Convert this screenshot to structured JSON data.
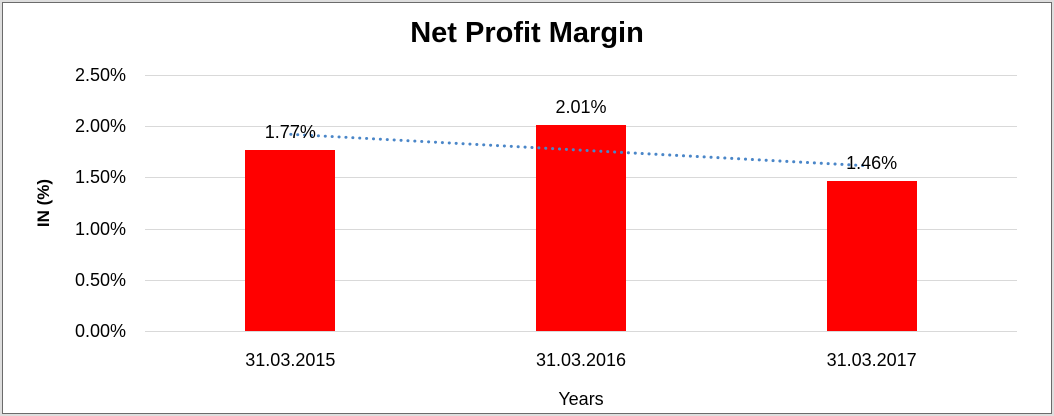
{
  "chart_data": {
    "type": "bar",
    "title": "Net Profit Margin",
    "categories": [
      "31.03.2015",
      "31.03.2016",
      "31.03.2017"
    ],
    "values": [
      1.77,
      2.01,
      1.46
    ],
    "value_labels": [
      "1.77%",
      "2.01%",
      "1.46%"
    ],
    "xlabel": "Years",
    "ylabel": "IN (%)",
    "ylim": [
      0,
      2.5
    ],
    "ytick_step": 0.5,
    "ytick_labels": [
      "0.00%",
      "0.50%",
      "1.00%",
      "1.50%",
      "2.00%",
      "2.50%"
    ],
    "grid": true,
    "legend": "none",
    "bar_color": "#ff0000",
    "gridline_color": "#d9d9d9",
    "text_color": "#000000",
    "trendline": {
      "type": "linear",
      "style": "dotted",
      "color": "#4a86c8",
      "start_value": 1.902,
      "end_value": 1.592
    }
  }
}
